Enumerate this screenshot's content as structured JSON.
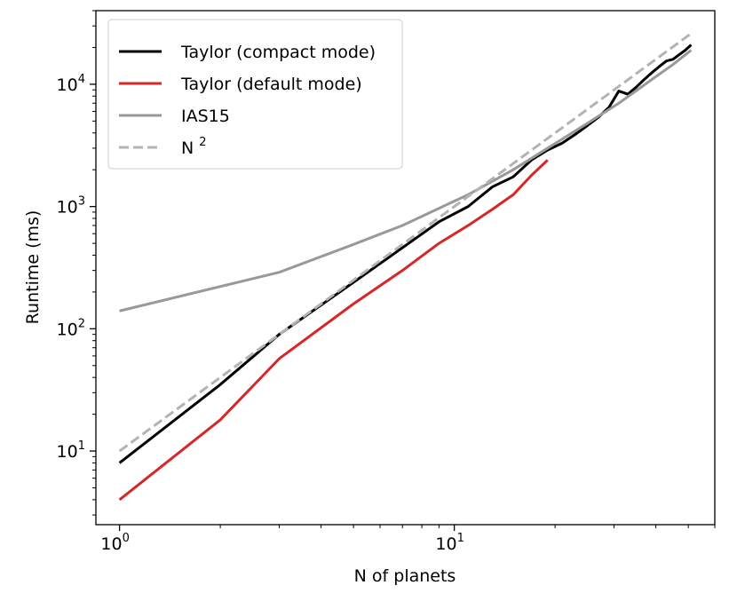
{
  "chart_data": {
    "type": "line",
    "title": "",
    "xlabel": "N of planets",
    "ylabel": "Runtime (ms)",
    "xscale": "log",
    "yscale": "log",
    "xlim": [
      0.85,
      60
    ],
    "ylim": [
      2.5,
      40000
    ],
    "grid": false,
    "legend_position": "top-left",
    "x_ticks": [
      {
        "base": "10",
        "exp": "0",
        "value": 1
      },
      {
        "base": "10",
        "exp": "1",
        "value": 10
      }
    ],
    "y_ticks": [
      {
        "base": "10",
        "exp": "1",
        "value": 10
      },
      {
        "base": "10",
        "exp": "2",
        "value": 100
      },
      {
        "base": "10",
        "exp": "3",
        "value": 1000
      },
      {
        "base": "10",
        "exp": "4",
        "value": 10000
      }
    ],
    "series": [
      {
        "name": "Taylor (compact mode)",
        "color": "#000000",
        "dash": "solid",
        "x": [
          1,
          2,
          3,
          5,
          7,
          9,
          11,
          13,
          15,
          17,
          19,
          21,
          23,
          25,
          27,
          29,
          31,
          33,
          35,
          37,
          39,
          41,
          43,
          45,
          47,
          49,
          51
        ],
        "y": [
          8,
          35,
          90,
          240,
          460,
          750,
          1000,
          1450,
          1750,
          2400,
          2900,
          3300,
          3900,
          4600,
          5400,
          6500,
          8800,
          8300,
          9500,
          11000,
          12500,
          14000,
          15500,
          16000,
          17500,
          19000,
          21000
        ]
      },
      {
        "name": "Taylor (default mode)",
        "color": "#d62728",
        "dash": "solid",
        "x": [
          1,
          2,
          3,
          5,
          7,
          9,
          11,
          13,
          15,
          17,
          19
        ],
        "y": [
          4,
          18,
          57,
          160,
          300,
          500,
          700,
          950,
          1250,
          1800,
          2400
        ]
      },
      {
        "name": "IAS15",
        "color": "#999999",
        "dash": "solid",
        "x": [
          1,
          3,
          5,
          7,
          11,
          15,
          19,
          25,
          31,
          39,
          45,
          51
        ],
        "y": [
          140,
          290,
          490,
          700,
          1250,
          2000,
          3000,
          4800,
          7000,
          11000,
          14500,
          19000
        ]
      },
      {
        "name": "N ",
        "name_sup": "2",
        "color": "#b3b3b3",
        "dash": "dashed",
        "x": [
          1,
          51
        ],
        "y": [
          10,
          26010
        ]
      }
    ]
  }
}
